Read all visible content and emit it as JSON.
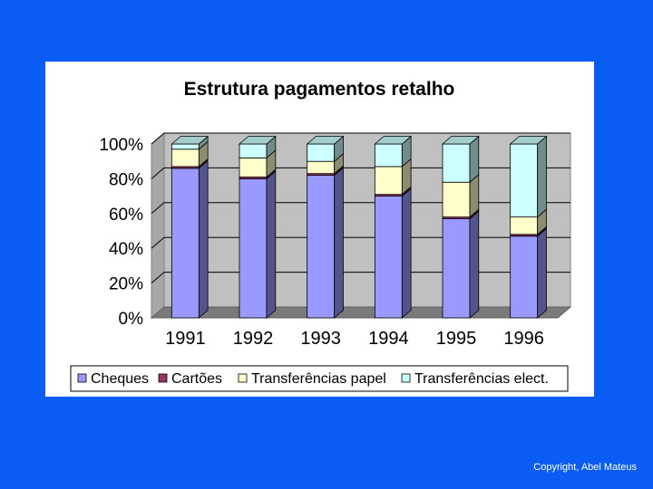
{
  "slide": {
    "copyright": "Copyright, Abel Mateus"
  },
  "chart_data": {
    "type": "bar",
    "stacked": "percent",
    "title": "Estrutura pagamentos retalho",
    "categories": [
      "1991",
      "1992",
      "1993",
      "1994",
      "1995",
      "1996"
    ],
    "series": [
      {
        "name": "Cheques",
        "color": "#9999ff",
        "values": [
          86,
          80,
          82,
          70,
          57,
          47
        ]
      },
      {
        "name": "Cartões",
        "color": "#993366",
        "values": [
          1,
          1,
          1,
          1,
          1,
          1
        ]
      },
      {
        "name": "Transferências papel",
        "color": "#ffffcc",
        "values": [
          10,
          11,
          7,
          16,
          20,
          10
        ]
      },
      {
        "name": "Transferências elect.",
        "color": "#ccffff",
        "values": [
          3,
          8,
          10,
          13,
          22,
          42
        ]
      }
    ],
    "yticks": [
      "0%",
      "20%",
      "40%",
      "60%",
      "80%",
      "100%"
    ],
    "ylim": [
      0,
      100
    ],
    "grid": true,
    "legend_position": "bottom",
    "xlabel": "",
    "ylabel": ""
  }
}
